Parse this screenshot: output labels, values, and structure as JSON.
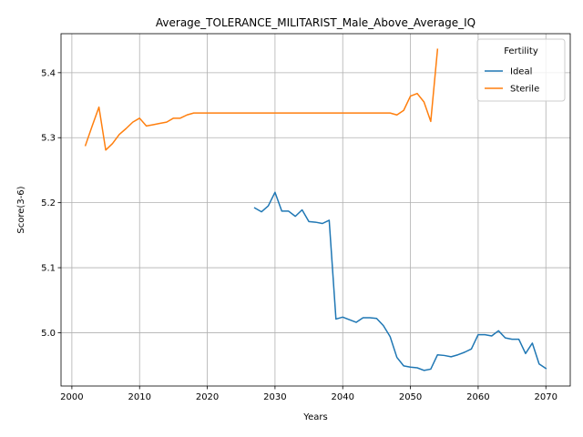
{
  "chart_data": {
    "type": "line",
    "title": "Average_TOLERANCE_MILITARIST_Male_Above_Average_IQ",
    "xlabel": "Years",
    "ylabel": "Score(3-6)",
    "xlim": [
      1998.4,
      2073.6
    ],
    "ylim": [
      4.918,
      5.46
    ],
    "xticks": [
      2000,
      2010,
      2020,
      2030,
      2040,
      2050,
      2060,
      2070
    ],
    "yticks": [
      5.0,
      5.1,
      5.2,
      5.3,
      5.4
    ],
    "ytick_labels": [
      "5.0",
      "5.1",
      "5.2",
      "5.3",
      "5.4"
    ],
    "grid": true,
    "legend": {
      "title": "Fertility",
      "placement": "top-right"
    },
    "series": [
      {
        "name": "Ideal",
        "color": "#1f77b4",
        "points": [
          [
            2027,
            5.192
          ],
          [
            2028,
            5.186
          ],
          [
            2029,
            5.195
          ],
          [
            2030,
            5.216
          ],
          [
            2031,
            5.187
          ],
          [
            2032,
            5.187
          ],
          [
            2033,
            5.179
          ],
          [
            2034,
            5.189
          ],
          [
            2035,
            5.171
          ],
          [
            2036,
            5.17
          ],
          [
            2037,
            5.168
          ],
          [
            2038,
            5.173
          ],
          [
            2039,
            5.021
          ],
          [
            2040,
            5.024
          ],
          [
            2041,
            5.02
          ],
          [
            2042,
            5.016
          ],
          [
            2043,
            5.023
          ],
          [
            2044,
            5.023
          ],
          [
            2045,
            5.022
          ],
          [
            2046,
            5.011
          ],
          [
            2047,
            4.994
          ],
          [
            2048,
            4.962
          ],
          [
            2049,
            4.949
          ],
          [
            2050,
            4.947
          ],
          [
            2051,
            4.946
          ],
          [
            2052,
            4.942
          ],
          [
            2053,
            4.944
          ],
          [
            2054,
            4.966
          ],
          [
            2055,
            4.965
          ],
          [
            2056,
            4.963
          ],
          [
            2057,
            4.966
          ],
          [
            2058,
            4.97
          ],
          [
            2059,
            4.975
          ],
          [
            2060,
            4.997
          ],
          [
            2061,
            4.997
          ],
          [
            2062,
            4.995
          ],
          [
            2063,
            5.003
          ],
          [
            2064,
            4.992
          ],
          [
            2065,
            4.99
          ],
          [
            2066,
            4.99
          ],
          [
            2067,
            4.968
          ],
          [
            2068,
            4.984
          ],
          [
            2069,
            4.952
          ],
          [
            2070,
            4.945
          ]
        ]
      },
      {
        "name": "Sterile",
        "color": "#ff7f0e",
        "points": [
          [
            2002,
            5.288
          ],
          [
            2003,
            5.318
          ],
          [
            2004,
            5.347
          ],
          [
            2005,
            5.281
          ],
          [
            2006,
            5.291
          ],
          [
            2007,
            5.305
          ],
          [
            2008,
            5.314
          ],
          [
            2009,
            5.324
          ],
          [
            2010,
            5.33
          ],
          [
            2011,
            5.318
          ],
          [
            2012,
            5.32
          ],
          [
            2013,
            5.322
          ],
          [
            2014,
            5.324
          ],
          [
            2015,
            5.33
          ],
          [
            2016,
            5.33
          ],
          [
            2017,
            5.335
          ],
          [
            2018,
            5.338
          ],
          [
            2019,
            5.338
          ],
          [
            2020,
            5.338
          ],
          [
            2021,
            5.338
          ],
          [
            2022,
            5.338
          ],
          [
            2023,
            5.338
          ],
          [
            2024,
            5.338
          ],
          [
            2025,
            5.338
          ],
          [
            2026,
            5.338
          ],
          [
            2027,
            5.338
          ],
          [
            2028,
            5.338
          ],
          [
            2029,
            5.338
          ],
          [
            2030,
            5.338
          ],
          [
            2031,
            5.338
          ],
          [
            2032,
            5.338
          ],
          [
            2033,
            5.338
          ],
          [
            2034,
            5.338
          ],
          [
            2035,
            5.338
          ],
          [
            2036,
            5.338
          ],
          [
            2037,
            5.338
          ],
          [
            2038,
            5.338
          ],
          [
            2039,
            5.338
          ],
          [
            2040,
            5.338
          ],
          [
            2041,
            5.338
          ],
          [
            2042,
            5.338
          ],
          [
            2043,
            5.338
          ],
          [
            2044,
            5.338
          ],
          [
            2045,
            5.338
          ],
          [
            2046,
            5.338
          ],
          [
            2047,
            5.338
          ],
          [
            2048,
            5.335
          ],
          [
            2049,
            5.342
          ],
          [
            2050,
            5.364
          ],
          [
            2051,
            5.368
          ],
          [
            2052,
            5.355
          ],
          [
            2053,
            5.325
          ],
          [
            2054,
            5.436
          ]
        ]
      }
    ]
  }
}
